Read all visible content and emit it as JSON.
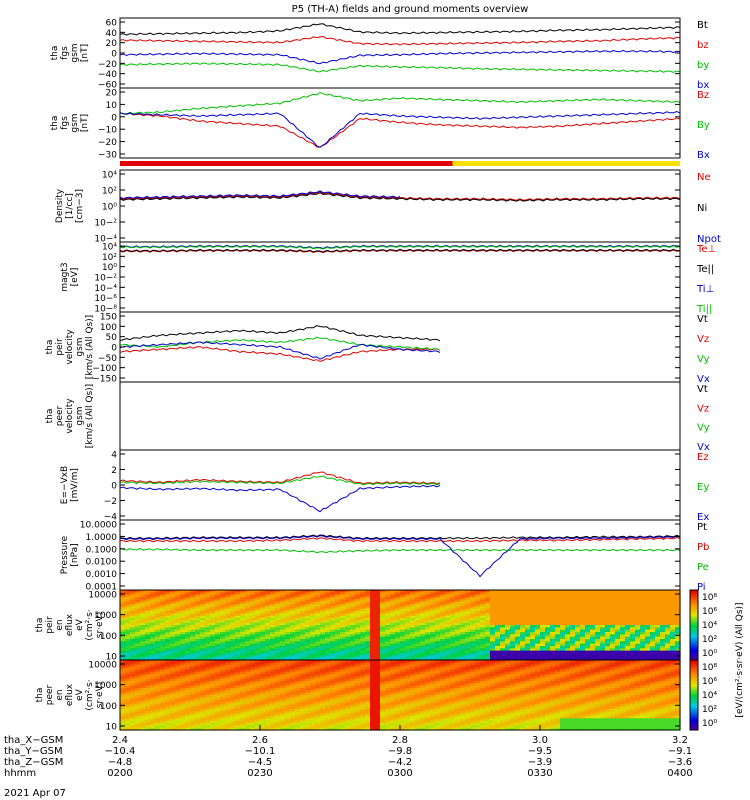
{
  "title": "P5 (TH-A) fields and ground moments overview",
  "colors": {
    "black": "#000000",
    "red": "#e00000",
    "green": "#00c000",
    "blue": "#0000d0",
    "yellow": "#ffe000"
  },
  "chart_data": [
    {
      "type": "line",
      "panel": "tha fgs gsm",
      "ylabel": [
        "tha",
        "fgs",
        "gsm",
        "[nT]"
      ],
      "yticks": [
        "60",
        "40",
        "20",
        "0",
        "−20",
        "−40",
        "−60"
      ],
      "ylim": [
        -60,
        60
      ],
      "series": [
        {
          "name": "Bt",
          "color": "black",
          "values": [
            32,
            33,
            34,
            35,
            38,
            50,
            36,
            34,
            35,
            36,
            37,
            39,
            40,
            42,
            44
          ]
        },
        {
          "name": "bz",
          "color": "red",
          "values": [
            22,
            21,
            20,
            19,
            18,
            28,
            16,
            15,
            16,
            17,
            18,
            20,
            21,
            24,
            26
          ]
        },
        {
          "name": "by",
          "color": "green",
          "values": [
            -20,
            -19,
            -18,
            -19,
            -20,
            -32,
            -22,
            -24,
            -25,
            -27,
            -28,
            -29,
            -30,
            -31,
            -32
          ]
        },
        {
          "name": "bx",
          "color": "blue",
          "values": [
            -3,
            -2,
            -1,
            -2,
            -3,
            -18,
            -4,
            -3,
            -1,
            0,
            1,
            2,
            3,
            3,
            2
          ]
        }
      ]
    },
    {
      "type": "line",
      "panel": "tha fgs gsm",
      "ylabel": [
        "tha",
        "fgs",
        "gsm",
        "[nT]"
      ],
      "yticks": [
        "20",
        "10",
        "0",
        "−10",
        "−20",
        "−30"
      ],
      "ylim": [
        -33,
        22
      ],
      "series": [
        {
          "name": "Bz",
          "color": "red",
          "values": [
            2,
            0,
            -4,
            -6,
            -8,
            -25,
            -2,
            -5,
            -7,
            -8,
            -9,
            -8,
            -6,
            -4,
            -2
          ]
        },
        {
          "name": "By",
          "color": "green",
          "values": [
            2,
            3,
            6,
            8,
            10,
            18,
            12,
            14,
            13,
            12,
            11,
            12,
            13,
            12,
            11
          ]
        },
        {
          "name": "Bx",
          "color": "blue",
          "values": [
            2,
            1,
            0,
            1,
            2,
            -25,
            2,
            0,
            -1,
            -2,
            -1,
            0,
            1,
            2,
            3
          ]
        }
      ]
    },
    {
      "type": "line",
      "panel": "Density",
      "ylabel": [
        "Density",
        "[1/cc]",
        "[cm−3]"
      ],
      "yticks": [
        "10⁴",
        "10²",
        "10⁰",
        "10−²",
        "10−⁴"
      ],
      "ylim": [
        -4,
        4
      ],
      "log": true,
      "series": [
        {
          "name": "Ne",
          "color": "red",
          "values": [
            0.8,
            0.9,
            1.0,
            1.1,
            1.0,
            1.5,
            1.0,
            0.9,
            0.8,
            0.8,
            0.7,
            0.8,
            0.8,
            0.9,
            0.9
          ]
        },
        {
          "name": "Ni",
          "color": "black",
          "values": [
            0.7,
            0.8,
            0.9,
            1.0,
            0.9,
            1.4,
            0.9,
            0.8,
            0.7,
            0.7,
            0.6,
            0.7,
            0.7,
            0.8,
            0.8
          ]
        },
        {
          "name": "Npot",
          "color": "blue",
          "values": [
            0.9,
            1.0,
            1.1,
            1.2,
            1.1,
            1.6,
            1.1,
            1.0,
            null,
            null,
            null,
            null,
            null,
            null,
            null
          ]
        }
      ]
    },
    {
      "type": "line",
      "panel": "magt3",
      "ylabel": [
        "magt3",
        "[eV]"
      ],
      "yticks": [
        "10⁴",
        "10²",
        "10⁰",
        "10−²",
        "10−⁴",
        "10−⁶",
        "10−⁸"
      ],
      "ylim": [
        -8,
        4
      ],
      "log": true,
      "series": [
        {
          "name": "Te⊥",
          "color": "red",
          "values": [
            2.4,
            2.4,
            2.5,
            2.5,
            2.5,
            2.3,
            2.5,
            2.5,
            2.5,
            2.5,
            2.5,
            2.5,
            2.5,
            2.5,
            2.5
          ]
        },
        {
          "name": "Te||",
          "color": "black",
          "values": [
            2.5,
            2.5,
            2.6,
            2.6,
            2.6,
            2.4,
            2.6,
            2.6,
            2.6,
            2.6,
            2.6,
            2.6,
            2.6,
            2.6,
            2.6
          ]
        },
        {
          "name": "Ti⊥",
          "color": "blue",
          "values": [
            3.2,
            3.2,
            3.3,
            3.3,
            3.3,
            3.0,
            3.3,
            3.3,
            3.3,
            3.3,
            3.3,
            3.3,
            3.3,
            3.3,
            3.3
          ]
        },
        {
          "name": "Ti||",
          "color": "green",
          "values": [
            3.1,
            3.1,
            3.2,
            3.2,
            3.2,
            2.9,
            3.2,
            3.2,
            3.2,
            3.2,
            3.2,
            3.2,
            3.2,
            3.2,
            3.2
          ]
        }
      ]
    },
    {
      "type": "line",
      "panel": "tha peir velocity gsm",
      "ylabel": [
        "tha",
        "peir",
        "velocity",
        "gsm",
        "[km/s (All Qs)]"
      ],
      "yticks": [
        "150",
        "100",
        "50",
        "0",
        "−50",
        "−100",
        "−150"
      ],
      "ylim": [
        -150,
        150
      ],
      "series": [
        {
          "name": "Vt",
          "color": "black",
          "values": [
            30,
            50,
            60,
            70,
            60,
            90,
            50,
            40,
            30,
            null,
            null,
            null,
            null,
            null,
            null
          ]
        },
        {
          "name": "Vz",
          "color": "red",
          "values": [
            -20,
            -10,
            0,
            -20,
            -30,
            -60,
            -20,
            -10,
            -10,
            null,
            null,
            null,
            null,
            null,
            null
          ]
        },
        {
          "name": "Vy",
          "color": "green",
          "values": [
            10,
            0,
            20,
            30,
            20,
            40,
            10,
            0,
            -10,
            null,
            null,
            null,
            null,
            null,
            null
          ]
        },
        {
          "name": "Vx",
          "color": "blue",
          "values": [
            0,
            10,
            20,
            10,
            0,
            -50,
            10,
            -10,
            -20,
            null,
            null,
            null,
            null,
            null,
            null
          ]
        }
      ]
    },
    {
      "type": "line",
      "panel": "tha peer velocity gsm",
      "ylabel": [
        "tha",
        "peer",
        "velocity",
        "gsm",
        "[km/s (All Qs)]"
      ],
      "yticks": [],
      "series": [
        {
          "name": "Vt",
          "color": "black",
          "values": []
        },
        {
          "name": "Vz",
          "color": "red",
          "values": []
        },
        {
          "name": "Vy",
          "color": "green",
          "values": []
        },
        {
          "name": "Vx",
          "color": "blue",
          "values": []
        }
      ]
    },
    {
      "type": "line",
      "panel": "E=−VxB",
      "ylabel": [
        "E=−VxB",
        "[mV/m]"
      ],
      "yticks": [
        "4",
        "2",
        "0",
        "−2",
        "−4"
      ],
      "ylim": [
        -4,
        4
      ],
      "series": [
        {
          "name": "Ez",
          "color": "red",
          "values": [
            0.5,
            0.3,
            0.6,
            0.4,
            0.3,
            1.5,
            0.2,
            0.3,
            0.2,
            null,
            null,
            null,
            null,
            null,
            null
          ]
        },
        {
          "name": "Ey",
          "color": "green",
          "values": [
            0.3,
            0.2,
            0.4,
            0.3,
            0.2,
            1.0,
            0.1,
            0.2,
            0.1,
            null,
            null,
            null,
            null,
            null,
            null
          ]
        },
        {
          "name": "Ex",
          "color": "blue",
          "values": [
            -0.3,
            -0.5,
            -0.4,
            -0.6,
            -0.5,
            -3.0,
            -0.4,
            -0.2,
            -0.1,
            null,
            null,
            null,
            null,
            null,
            null
          ]
        }
      ]
    },
    {
      "type": "line",
      "panel": "Pressure",
      "ylabel": [
        "Pressure",
        "[nPa]"
      ],
      "yticks": [
        "10.0000",
        "1.0000",
        "0.1000",
        "0.0100",
        "0.0010",
        "0.0001"
      ],
      "ylim": [
        -4,
        1
      ],
      "log": true,
      "series": [
        {
          "name": "Pt",
          "color": "black",
          "values": [
            -0.3,
            -0.3,
            -0.25,
            -0.25,
            -0.25,
            -0.1,
            -0.3,
            -0.3,
            -0.3,
            -0.3,
            -0.25,
            -0.25,
            -0.2,
            -0.2,
            -0.15
          ]
        },
        {
          "name": "Pb",
          "color": "red",
          "values": [
            -0.5,
            -0.5,
            -0.5,
            -0.5,
            -0.45,
            -0.3,
            -0.5,
            -0.5,
            -0.5,
            -0.5,
            -0.45,
            -0.45,
            -0.4,
            -0.35,
            -0.3
          ]
        },
        {
          "name": "Pe",
          "color": "green",
          "values": [
            -1.1,
            -1.1,
            -1.15,
            -1.15,
            -1.15,
            -1.3,
            -1.2,
            -1.15,
            -1.15,
            -1.15,
            -1.15,
            -1.15,
            -1.15,
            -1.15,
            -1.15
          ]
        },
        {
          "name": "Pi",
          "color": "blue",
          "values": [
            -0.35,
            -0.35,
            -0.3,
            -0.3,
            -0.3,
            -0.15,
            -0.35,
            -0.35,
            -0.35,
            -3.0,
            -0.35,
            -0.3,
            -0.3,
            -0.25,
            -0.2
          ]
        }
      ]
    },
    {
      "type": "heatmap",
      "panel": "tha peir en eflux",
      "ylabel": [
        "tha",
        "peir",
        "en",
        "eflux",
        "eV",
        "(cm²·s·",
        "sr·eV)"
      ],
      "yticks": [
        "10000",
        "1000",
        "100",
        "10"
      ],
      "ylim": [
        1,
        4
      ],
      "log": true
    },
    {
      "type": "heatmap",
      "panel": "tha peer en eflux",
      "ylabel": [
        "tha",
        "peer",
        "en",
        "eflux",
        "eV",
        "(cm²·s·",
        "sr·eV)"
      ],
      "yticks": [
        "10000",
        "1000",
        "100",
        "10"
      ],
      "ylim": [
        1,
        4
      ],
      "log": true
    }
  ],
  "colorbar": {
    "upper_ticks": [
      "10⁸",
      "10⁶",
      "10⁴",
      "10²",
      "10⁰"
    ],
    "lower_ticks": [
      "10⁸",
      "10⁶",
      "10⁴",
      "10²",
      "10⁰"
    ],
    "label": "[eV/(cm²·s·sr·eV) (All Qs)]"
  },
  "mode_bar": {
    "segments": [
      {
        "from": 2.4,
        "to": 2.875,
        "color": "red"
      },
      {
        "from": 2.875,
        "to": 3.2,
        "color": "yellow"
      }
    ]
  },
  "xaxis": {
    "ticks": [
      "2.4",
      "2.6",
      "2.8",
      "3.0",
      "3.2"
    ],
    "rows": [
      {
        "label": "tha_X−GSM",
        "values": [
          "−10.4",
          "−10.1",
          "−9.8",
          "−9.5",
          "−9.1"
        ]
      },
      {
        "label": "tha_Y−GSM",
        "values": [
          "−4.8",
          "−4.5",
          "−4.2",
          "−3.9",
          "−3.6"
        ]
      },
      {
        "label": "tha_Z−GSM",
        "values": [
          "0200",
          "0230",
          "0300",
          "0330",
          "0400"
        ]
      },
      {
        "label": "hhmm",
        "values": []
      }
    ],
    "date": "2021 Apr 07"
  }
}
